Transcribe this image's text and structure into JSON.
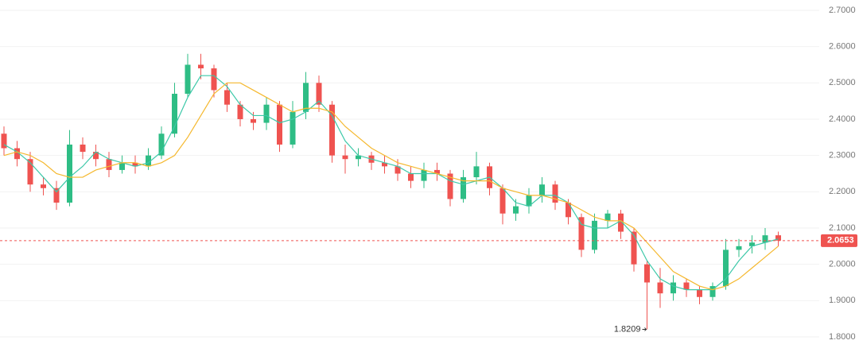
{
  "chart_data": {
    "type": "candlestick",
    "ylim": [
      1.7584,
      2.7284
    ],
    "yticks": [
      {
        "value": 1.8,
        "label": "1.8000"
      },
      {
        "value": 1.9,
        "label": "1.9000"
      },
      {
        "value": 2.0,
        "label": "2.0000"
      },
      {
        "value": 2.1,
        "label": "2.1000"
      },
      {
        "value": 2.2,
        "label": "2.2000"
      },
      {
        "value": 2.3,
        "label": "2.3000"
      },
      {
        "value": 2.4,
        "label": "2.4000"
      },
      {
        "value": 2.5,
        "label": "2.5000"
      },
      {
        "value": 2.6,
        "label": "2.6000"
      },
      {
        "value": 2.7,
        "label": "2.7000"
      }
    ],
    "grid": true,
    "up_color": "#2ebd85",
    "down_color": "#ef5350",
    "open": [
      2.36,
      2.32,
      2.29,
      2.22,
      2.21,
      2.17,
      2.33,
      2.31,
      2.29,
      2.26,
      2.28,
      2.27,
      2.3,
      2.36,
      2.47,
      2.55,
      2.54,
      2.48,
      2.44,
      2.4,
      2.39,
      2.44,
      2.33,
      2.42,
      2.5,
      2.44,
      2.3,
      2.29,
      2.3,
      2.28,
      2.27,
      2.25,
      2.23,
      2.26,
      2.25,
      2.18,
      2.24,
      2.27,
      2.21,
      2.14,
      2.16,
      2.19,
      2.22,
      2.17,
      2.13,
      2.04,
      2.12,
      2.14,
      2.09,
      2.0,
      1.95,
      1.92,
      1.95,
      1.93,
      1.91,
      1.94,
      2.04,
      2.05,
      2.06,
      2.08
    ],
    "high": [
      2.38,
      2.34,
      2.31,
      2.24,
      2.23,
      2.37,
      2.35,
      2.33,
      2.31,
      2.3,
      2.3,
      2.32,
      2.38,
      2.5,
      2.58,
      2.58,
      2.55,
      2.5,
      2.45,
      2.42,
      2.46,
      2.45,
      2.45,
      2.53,
      2.52,
      2.45,
      2.33,
      2.32,
      2.31,
      2.3,
      2.29,
      2.27,
      2.28,
      2.28,
      2.26,
      2.26,
      2.31,
      2.28,
      2.22,
      2.18,
      2.21,
      2.24,
      2.23,
      2.18,
      2.14,
      2.14,
      2.15,
      2.15,
      2.1,
      2.01,
      1.99,
      1.97,
      1.96,
      1.94,
      1.95,
      2.07,
      2.07,
      2.08,
      2.1,
      2.09
    ],
    "low": [
      2.3,
      2.27,
      2.2,
      2.19,
      2.15,
      2.16,
      2.29,
      2.27,
      2.24,
      2.25,
      2.25,
      2.26,
      2.29,
      2.35,
      2.46,
      2.51,
      2.46,
      2.42,
      2.38,
      2.37,
      2.37,
      2.31,
      2.32,
      2.4,
      2.42,
      2.28,
      2.25,
      2.27,
      2.26,
      2.25,
      2.23,
      2.21,
      2.21,
      2.23,
      2.16,
      2.17,
      2.22,
      2.19,
      2.11,
      2.12,
      2.14,
      2.17,
      2.15,
      2.11,
      2.02,
      2.03,
      2.1,
      2.07,
      1.98,
      1.8209,
      1.88,
      1.9,
      1.91,
      1.89,
      1.9,
      1.93,
      2.02,
      2.03,
      2.04,
      2.05
    ],
    "close": [
      2.32,
      2.29,
      2.22,
      2.21,
      2.17,
      2.33,
      2.31,
      2.29,
      2.26,
      2.28,
      2.27,
      2.3,
      2.36,
      2.47,
      2.55,
      2.54,
      2.48,
      2.44,
      2.4,
      2.39,
      2.44,
      2.33,
      2.42,
      2.5,
      2.44,
      2.3,
      2.29,
      2.3,
      2.28,
      2.27,
      2.25,
      2.23,
      2.26,
      2.25,
      2.18,
      2.24,
      2.27,
      2.21,
      2.14,
      2.16,
      2.19,
      2.22,
      2.17,
      2.13,
      2.04,
      2.12,
      2.14,
      2.09,
      2.0,
      1.95,
      1.92,
      1.95,
      1.93,
      1.91,
      1.94,
      2.04,
      2.05,
      2.06,
      2.08,
      2.0653
    ],
    "series": [
      {
        "color": "#3cc8a8",
        "values": [
          2.33,
          2.31,
          2.28,
          2.24,
          2.2,
          2.24,
          2.27,
          2.31,
          2.29,
          2.28,
          2.27,
          2.28,
          2.31,
          2.38,
          2.46,
          2.52,
          2.52,
          2.49,
          2.44,
          2.41,
          2.41,
          2.39,
          2.4,
          2.42,
          2.45,
          2.41,
          2.34,
          2.3,
          2.29,
          2.28,
          2.27,
          2.25,
          2.25,
          2.25,
          2.23,
          2.22,
          2.23,
          2.24,
          2.21,
          2.17,
          2.16,
          2.19,
          2.19,
          2.17,
          2.11,
          2.1,
          2.1,
          2.12,
          2.08,
          2.01,
          1.96,
          1.94,
          1.93,
          1.93,
          1.93,
          1.96,
          2.01,
          2.05,
          2.06,
          2.07
        ]
      },
      {
        "color": "#f5b82e",
        "values": [
          2.3,
          2.31,
          2.3,
          2.28,
          2.25,
          2.24,
          2.24,
          2.26,
          2.27,
          2.28,
          2.28,
          2.27,
          2.28,
          2.3,
          2.35,
          2.41,
          2.47,
          2.5,
          2.5,
          2.48,
          2.46,
          2.44,
          2.42,
          2.43,
          2.43,
          2.42,
          2.38,
          2.35,
          2.32,
          2.3,
          2.28,
          2.27,
          2.26,
          2.25,
          2.24,
          2.23,
          2.23,
          2.23,
          2.21,
          2.2,
          2.19,
          2.19,
          2.18,
          2.17,
          2.15,
          2.13,
          2.12,
          2.12,
          2.1,
          2.06,
          2.02,
          1.98,
          1.96,
          1.94,
          1.93,
          1.94,
          1.96,
          1.99,
          2.02,
          2.05
        ]
      }
    ],
    "last_price": {
      "value": 2.0653,
      "label": "2.0653"
    },
    "low_annotation": {
      "value": 1.8209,
      "label": "1.8209"
    }
  }
}
